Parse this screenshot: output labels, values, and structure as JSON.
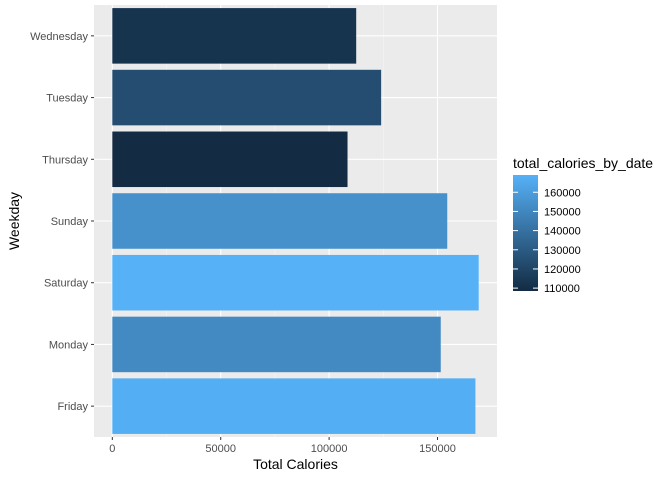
{
  "chart_data": {
    "type": "bar",
    "orientation": "horizontal",
    "categories": [
      "Wednesday",
      "Tuesday",
      "Thursday",
      "Sunday",
      "Saturday",
      "Monday",
      "Friday"
    ],
    "values": [
      112500,
      124000,
      108500,
      154500,
      169000,
      151500,
      167500
    ],
    "xlabel": "Total Calories",
    "ylabel": "Weekday",
    "x_ticks": [
      0,
      50000,
      100000,
      150000
    ],
    "x_tick_labels": [
      "0",
      "50000",
      "100000",
      "150000"
    ],
    "xlim": [
      -8450,
      177450
    ],
    "grid": true,
    "legend": {
      "title": "total_calories_by_date",
      "placement": "right",
      "type": "colorbar",
      "labels": [
        "160000",
        "150000",
        "140000",
        "130000",
        "120000",
        "110000"
      ],
      "breaks": [
        160000,
        150000,
        140000,
        130000,
        120000,
        110000
      ],
      "range": [
        108500,
        169000
      ]
    },
    "colors": {
      "low": "#132B43",
      "high": "#56B1F7",
      "panel": "#EBEBEB",
      "grid_major": "#FFFFFF",
      "grid_minor": "#F5F5F5"
    }
  }
}
